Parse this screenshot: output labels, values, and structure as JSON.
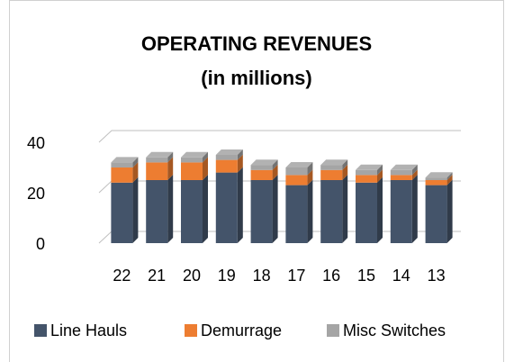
{
  "chart_data": {
    "type": "bar",
    "stacked": true,
    "three_d": true,
    "title": "OPERATING REVENUES",
    "subtitle": "(in millions)",
    "categories": [
      "22",
      "21",
      "20",
      "19",
      "18",
      "17",
      "16",
      "15",
      "14",
      "13"
    ],
    "series": [
      {
        "name": "Line Hauls",
        "color": "#44546a",
        "values": [
          24,
          25,
          25,
          28,
          25,
          23,
          25,
          24,
          25,
          23
        ]
      },
      {
        "name": "Demurrage",
        "color": "#ed7d31",
        "values": [
          6,
          7,
          7,
          5,
          4,
          4,
          4,
          3,
          2,
          2
        ]
      },
      {
        "name": "Misc Switches",
        "color": "#a5a5a5",
        "values": [
          2,
          2,
          2,
          2,
          2,
          3,
          2,
          2,
          2,
          1
        ]
      }
    ],
    "ylim": [
      0,
      40
    ],
    "yticks": [
      0,
      20,
      40
    ],
    "grid": true,
    "legend": "bottom"
  }
}
